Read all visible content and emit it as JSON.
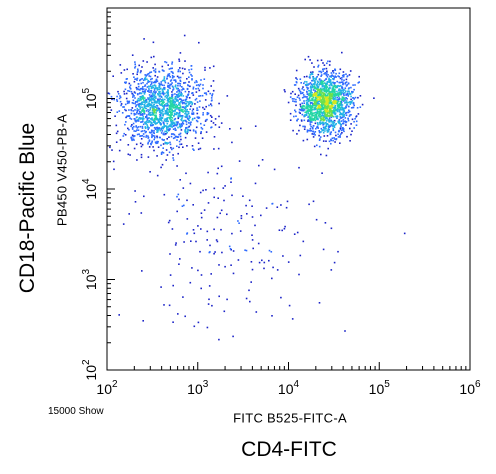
{
  "chart_data": {
    "type": "scatter",
    "xlabel": "FITC B525-FITC-A",
    "ylabel": "PB450 V450-PB-A",
    "outer_xlabel": "CD4-FITC",
    "outer_ylabel": "CD18-Pacific Blue",
    "event_label": "15000 Show",
    "xscale": "log",
    "yscale": "log",
    "xlim": [
      100,
      1000000
    ],
    "ylim": [
      100,
      1000000
    ],
    "xticks": [
      {
        "base": "10",
        "exp": "2"
      },
      {
        "base": "10",
        "exp": "3"
      },
      {
        "base": "10",
        "exp": "4"
      },
      {
        "base": "10",
        "exp": "5"
      },
      {
        "base": "10",
        "exp": "6"
      }
    ],
    "yticks": [
      {
        "base": "10",
        "exp": "2"
      },
      {
        "base": "10",
        "exp": "3"
      },
      {
        "base": "10",
        "exp": "4"
      },
      {
        "base": "10",
        "exp": "5"
      }
    ],
    "grid": false,
    "colormap": [
      "#1b23c8",
      "#2e6bff",
      "#22b2e6",
      "#23d6a4",
      "#6ee04a",
      "#d8e81e"
    ],
    "populations": [
      {
        "x": 400,
        "y": 80000,
        "spread_x": 0.24,
        "spread_y": 0.22,
        "count": 1500
      },
      {
        "x": 25000,
        "y": 90000,
        "spread_x": 0.15,
        "spread_y": 0.17,
        "count": 1500
      },
      {
        "x": 2000,
        "y": 3000,
        "spread_x": 0.55,
        "spread_y": 0.5,
        "count": 200
      }
    ]
  }
}
